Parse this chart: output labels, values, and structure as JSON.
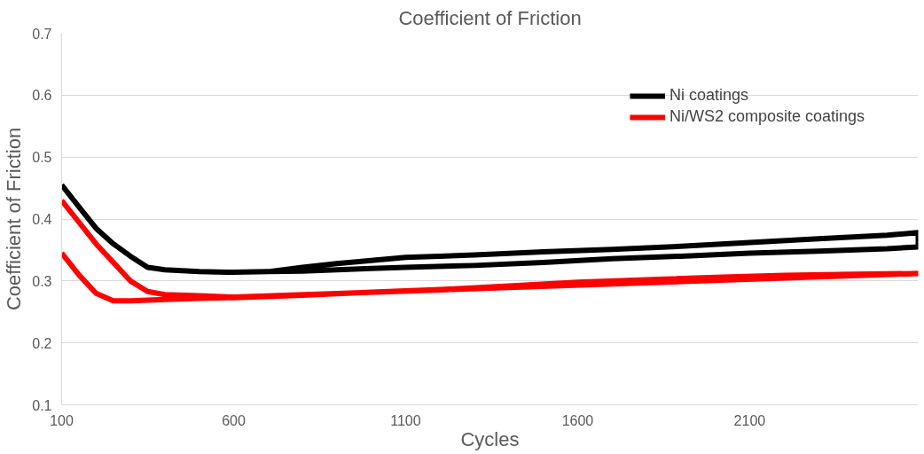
{
  "chart_data": {
    "type": "line",
    "title": "Coefficient of Friction",
    "xlabel": "Cycles",
    "ylabel": "Coefficient of Friction",
    "xlim": [
      100,
      2590
    ],
    "xticks": [
      100,
      600,
      1100,
      1600,
      2100
    ],
    "ylim": [
      0.1,
      0.7
    ],
    "yticks": [
      0.1,
      0.2,
      0.3,
      0.4,
      0.5,
      0.6,
      0.7
    ],
    "grid": "y",
    "legend": "top right",
    "marker": "none",
    "line_style": "solid",
    "series": [
      {
        "name": "Ni coatings",
        "color": "#000000",
        "x": [
          100,
          150,
          200,
          250,
          300,
          350,
          400,
          500,
          600,
          700,
          800,
          900,
          1000,
          1100,
          1300,
          1500,
          1700,
          1900,
          2100,
          2300,
          2500,
          2590,
          2590,
          2500,
          2300,
          2100,
          1900,
          1700,
          1500,
          1300,
          1100,
          1000,
          900,
          800,
          700
        ],
        "values": [
          0.455,
          0.42,
          0.385,
          0.36,
          0.34,
          0.322,
          0.318,
          0.315,
          0.314,
          0.315,
          0.322,
          0.328,
          0.333,
          0.338,
          0.342,
          0.347,
          0.351,
          0.356,
          0.362,
          0.368,
          0.374,
          0.378,
          0.355,
          0.352,
          0.348,
          0.345,
          0.34,
          0.336,
          0.33,
          0.325,
          0.322,
          0.32,
          0.318,
          0.316,
          0.315
        ]
      },
      {
        "name": "Ni/WS2 composite coatings",
        "color": "#ff0000",
        "x": [
          100,
          150,
          200,
          250,
          300,
          400,
          500,
          600,
          800,
          1000,
          1200,
          1400,
          1600,
          1800,
          2000,
          2200,
          2400,
          2590,
          600,
          500,
          400,
          350,
          300,
          250,
          200,
          150,
          100
        ],
        "values": [
          0.345,
          0.31,
          0.28,
          0.268,
          0.268,
          0.27,
          0.272,
          0.273,
          0.277,
          0.282,
          0.286,
          0.292,
          0.298,
          0.302,
          0.306,
          0.309,
          0.311,
          0.312,
          0.274,
          0.276,
          0.278,
          0.283,
          0.3,
          0.33,
          0.36,
          0.395,
          0.43
        ]
      }
    ]
  }
}
